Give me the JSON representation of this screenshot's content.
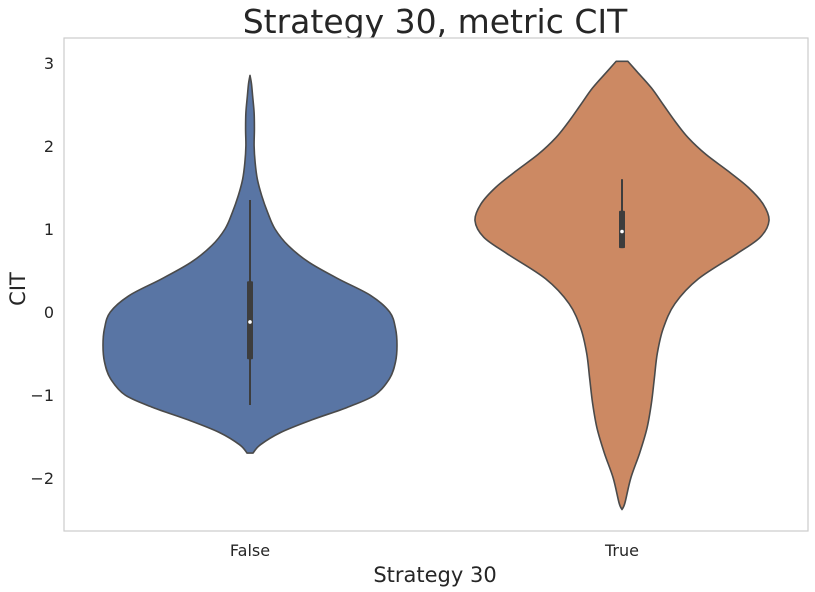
{
  "chart_data": {
    "type": "violin",
    "title": "Strategy 30, metric CIT",
    "xlabel": "Strategy 30",
    "ylabel": "CIT",
    "categories": [
      "False",
      "True"
    ],
    "ylim": [
      -2.6,
      3.3
    ],
    "yticks": [
      3,
      2,
      1,
      0,
      -1,
      -2
    ],
    "ytick_labels": [
      "3",
      "2",
      "1",
      "0",
      "−1",
      "−2"
    ],
    "grid": false,
    "colors": {
      "False": "#5975a4",
      "True": "#cc8963",
      "outline": "#4a4a4a",
      "box": "#3d3d3d",
      "frame": "#cccccc"
    },
    "violins": [
      {
        "category": "False",
        "min": -1.7,
        "max": 2.85,
        "median": -0.12,
        "q1": -0.57,
        "q3": 0.37,
        "whisker_low": -1.12,
        "whisker_high": 1.35,
        "profile": [
          [
            -1.7,
            0.02
          ],
          [
            -1.6,
            0.07
          ],
          [
            -1.45,
            0.21
          ],
          [
            -1.3,
            0.42
          ],
          [
            -1.15,
            0.66
          ],
          [
            -1.0,
            0.85
          ],
          [
            -0.8,
            0.95
          ],
          [
            -0.6,
            0.99
          ],
          [
            -0.4,
            1.0
          ],
          [
            -0.2,
            0.99
          ],
          [
            0.0,
            0.95
          ],
          [
            0.2,
            0.82
          ],
          [
            0.4,
            0.6
          ],
          [
            0.6,
            0.4
          ],
          [
            0.8,
            0.26
          ],
          [
            1.0,
            0.17
          ],
          [
            1.2,
            0.12
          ],
          [
            1.4,
            0.08
          ],
          [
            1.6,
            0.05
          ],
          [
            1.8,
            0.035
          ],
          [
            2.0,
            0.028
          ],
          [
            2.2,
            0.03
          ],
          [
            2.4,
            0.028
          ],
          [
            2.6,
            0.018
          ],
          [
            2.75,
            0.01
          ],
          [
            2.85,
            0.0
          ]
        ]
      },
      {
        "category": "True",
        "min": -2.38,
        "max": 3.02,
        "median": 0.97,
        "q1": 0.77,
        "q3": 1.22,
        "whisker_low": 0.77,
        "whisker_high": 1.6,
        "profile": [
          [
            -2.38,
            0.0
          ],
          [
            -2.3,
            0.02
          ],
          [
            -2.0,
            0.06
          ],
          [
            -1.7,
            0.12
          ],
          [
            -1.4,
            0.17
          ],
          [
            -1.1,
            0.2
          ],
          [
            -0.8,
            0.22
          ],
          [
            -0.5,
            0.24
          ],
          [
            -0.2,
            0.28
          ],
          [
            0.1,
            0.36
          ],
          [
            0.4,
            0.52
          ],
          [
            0.7,
            0.78
          ],
          [
            0.9,
            0.94
          ],
          [
            1.1,
            1.0
          ],
          [
            1.3,
            0.96
          ],
          [
            1.5,
            0.86
          ],
          [
            1.7,
            0.72
          ],
          [
            1.9,
            0.57
          ],
          [
            2.1,
            0.45
          ],
          [
            2.3,
            0.36
          ],
          [
            2.5,
            0.28
          ],
          [
            2.7,
            0.2
          ],
          [
            2.9,
            0.1
          ],
          [
            3.0,
            0.05
          ],
          [
            3.02,
            0.04
          ]
        ]
      }
    ]
  }
}
